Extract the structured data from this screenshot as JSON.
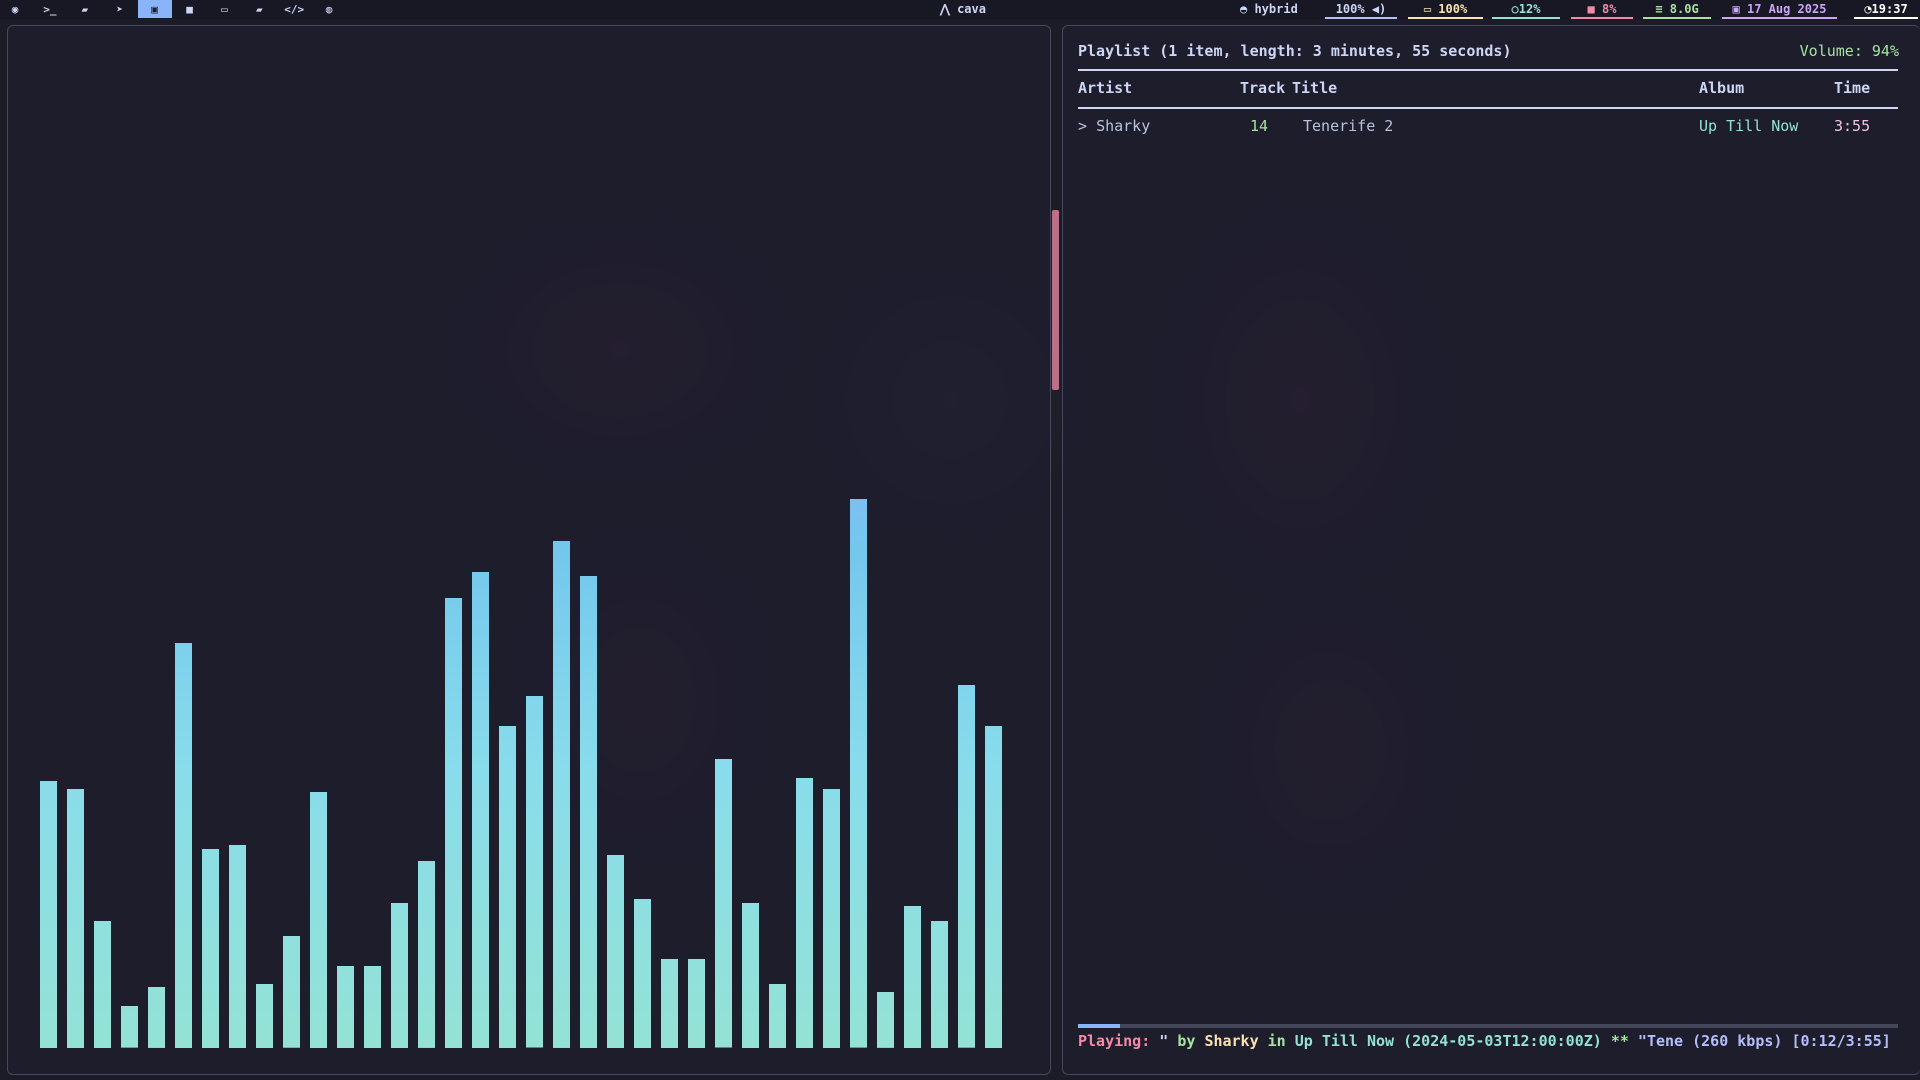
{
  "topbar": {
    "workspaces": [
      {
        "icon": "firefox-icon",
        "glyph": "◉"
      },
      {
        "icon": "terminal-icon",
        "glyph": ">_"
      },
      {
        "icon": "notes-icon",
        "glyph": "▰"
      },
      {
        "icon": "telegram-icon",
        "glyph": "➤"
      },
      {
        "icon": "image-icon",
        "glyph": "▣",
        "active": true
      },
      {
        "icon": "video-icon",
        "glyph": "■"
      },
      {
        "icon": "laptop-icon",
        "glyph": "▭"
      },
      {
        "icon": "folder-icon",
        "glyph": "▰"
      },
      {
        "icon": "code-icon",
        "glyph": "</>"
      },
      {
        "icon": "gamepad-icon",
        "glyph": "◍"
      }
    ],
    "window_title": "cava",
    "window_icon": "arch-icon",
    "modules": {
      "power_profile": "hybrid",
      "volume": "100%",
      "battery": "100%",
      "cpu": "12%",
      "gpu": "8%",
      "memory": "8.0G",
      "date": "17 Aug 2025",
      "time": "19:37"
    },
    "colors": {
      "volume": "#b4befe",
      "battery": "#f9e2af",
      "cpu": "#94e2d5",
      "gpu": "#f38ba8",
      "memory": "#a6e3a1",
      "date": "#cba6f7",
      "time": "#ffffff"
    }
  },
  "cava": {
    "levels": [
      0.263,
      0.255,
      0.125,
      0.041,
      0.06,
      0.399,
      0.196,
      0.2,
      0.063,
      0.11,
      0.252,
      0.081,
      0.081,
      0.143,
      0.184,
      0.443,
      0.469,
      0.317,
      0.346,
      0.499,
      0.465,
      0.19,
      0.147,
      0.088,
      0.088,
      0.284,
      0.143,
      0.063,
      0.266,
      0.255,
      0.54,
      0.055,
      0.14,
      0.125,
      0.357,
      0.317
    ],
    "gradient": [
      "#94e2d5",
      "#89dceb",
      "#74c7ec",
      "#89b4fa",
      "#b4befe"
    ]
  },
  "ncmpcpp": {
    "header": "Playlist (1 item, length: 3 minutes, 55 seconds)",
    "volume": "Volume: 94%",
    "columns": {
      "artist": "Artist",
      "track": "Track",
      "title": "Title",
      "album": "Album",
      "time": "Time"
    },
    "rows": [
      {
        "marker": ">",
        "artist": "Sharky",
        "track": "14",
        "title": "Tenerife 2",
        "album": "Up Till Now",
        "time": "3:55"
      }
    ],
    "progress": 0.051,
    "status": {
      "label": "Playing:",
      "q1": " \"",
      "by": " by ",
      "artist": "Sharky",
      "in": " in ",
      "album": "Up Till Now (2024-05-03T12:00:00Z)",
      "stars": "  ** ",
      "tail": "\"Tene (260 kbps) [0:12/3:55]"
    }
  }
}
